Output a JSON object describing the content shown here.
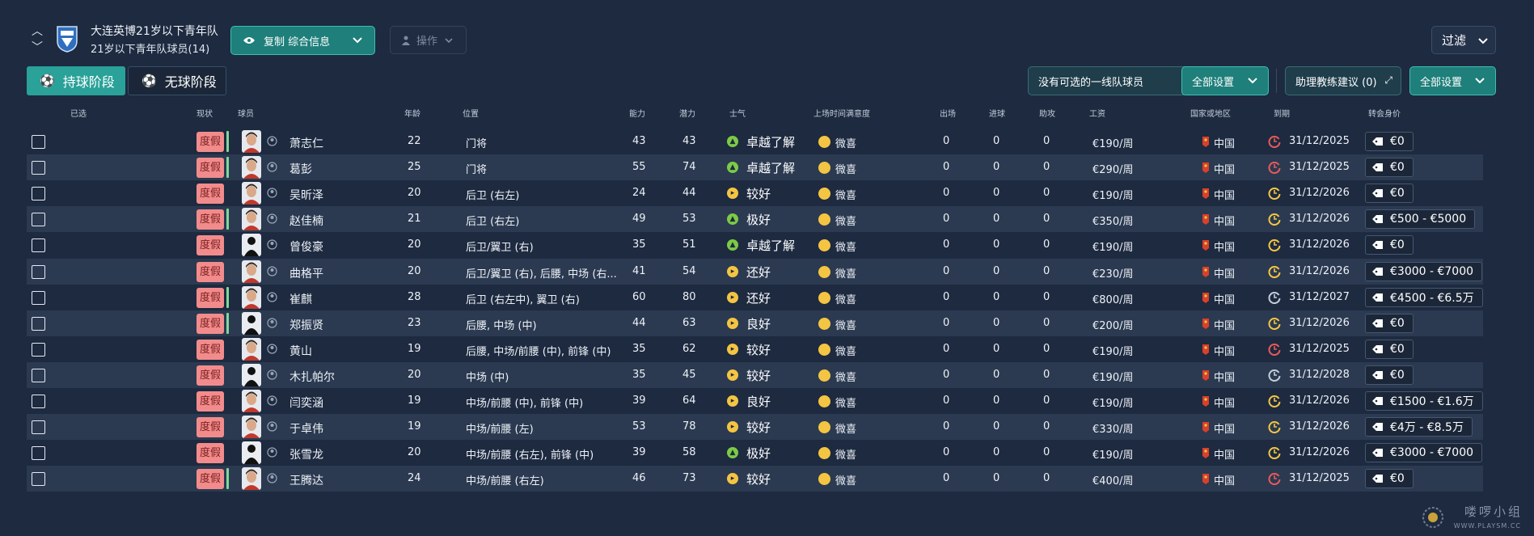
{
  "header": {
    "team_name": "大连英博21岁以下青年队",
    "team_sub": "21岁以下青年队球员(14)",
    "copy_button": "复制 综合信息",
    "action_button": "操作",
    "filter_button": "过滤"
  },
  "tabs": {
    "in_possession": "持球阶段",
    "out_possession": "无球阶段"
  },
  "toolbar": {
    "no_first_team": "没有可选的一线队球员",
    "all_settings_1": "全部设置",
    "assistant_advice": "助理教练建议 (0)",
    "all_settings_2": "全部设置"
  },
  "columns": {
    "selected": "已选",
    "status": "现状",
    "player": "球员",
    "age": "年龄",
    "position": "位置",
    "ability": "能力",
    "potential": "潜力",
    "morale": "士气",
    "playing_time": "上场时间满意度",
    "apps": "出场",
    "goals": "进球",
    "assists": "助攻",
    "wage": "工资",
    "nation": "国家或地区",
    "expires": "到期",
    "value": "转会身价"
  },
  "colors": {
    "morale_green": "#7ccb45",
    "morale_yellow": "#f4c542",
    "status_pink": "#f28c8c",
    "accent_teal": "#2aa199",
    "clock_red": "#e85a5a",
    "clock_yellow": "#f4c542",
    "clock_grey": "#c4cdd9"
  },
  "players": [
    {
      "status": "度假",
      "status_bar": true,
      "face": "photo",
      "name": "萧志仁",
      "age": "22",
      "position": "门将",
      "ability": "43",
      "potential": "43",
      "morale": "卓越了解",
      "morale_color": "green",
      "satisfaction": "微喜",
      "apps": "0",
      "goals": "0",
      "assists": "0",
      "wage": "€190/周",
      "nation": "中国",
      "expires": "31/12/2025",
      "expiry_color": "red",
      "value": "€0"
    },
    {
      "status": "度假",
      "status_bar": true,
      "face": "photo",
      "name": "葛彭",
      "age": "25",
      "position": "门将",
      "ability": "55",
      "potential": "74",
      "morale": "卓越了解",
      "morale_color": "green",
      "satisfaction": "微喜",
      "apps": "0",
      "goals": "0",
      "assists": "0",
      "wage": "€290/周",
      "nation": "中国",
      "expires": "31/12/2025",
      "expiry_color": "red",
      "value": "€0"
    },
    {
      "status": "度假",
      "status_bar": false,
      "face": "photo",
      "name": "吴昕泽",
      "age": "20",
      "position": "后卫 (右左)",
      "ability": "24",
      "potential": "44",
      "morale": "较好",
      "morale_color": "yellow",
      "satisfaction": "微喜",
      "apps": "0",
      "goals": "0",
      "assists": "0",
      "wage": "€190/周",
      "nation": "中国",
      "expires": "31/12/2026",
      "expiry_color": "yellow",
      "value": "€0"
    },
    {
      "status": "度假",
      "status_bar": true,
      "face": "photo",
      "name": "赵佳楠",
      "age": "21",
      "position": "后卫 (右左)",
      "ability": "49",
      "potential": "53",
      "morale": "极好",
      "morale_color": "green",
      "satisfaction": "微喜",
      "apps": "0",
      "goals": "0",
      "assists": "0",
      "wage": "€350/周",
      "nation": "中国",
      "expires": "31/12/2026",
      "expiry_color": "yellow",
      "value": "€500 - €5000"
    },
    {
      "status": "度假",
      "status_bar": false,
      "face": "silhouette",
      "name": "曾俊豪",
      "age": "20",
      "position": "后卫/翼卫 (右)",
      "ability": "35",
      "potential": "51",
      "morale": "卓越了解",
      "morale_color": "green",
      "satisfaction": "微喜",
      "apps": "0",
      "goals": "0",
      "assists": "0",
      "wage": "€190/周",
      "nation": "中国",
      "expires": "31/12/2026",
      "expiry_color": "yellow",
      "value": "€0"
    },
    {
      "status": "度假",
      "status_bar": false,
      "face": "photo",
      "name": "曲格平",
      "age": "20",
      "position": "后卫/翼卫 (右), 后腰, 中场 (右...",
      "ability": "41",
      "potential": "54",
      "morale": "还好",
      "morale_color": "yellow",
      "satisfaction": "微喜",
      "apps": "0",
      "goals": "0",
      "assists": "0",
      "wage": "€230/周",
      "nation": "中国",
      "expires": "31/12/2026",
      "expiry_color": "yellow",
      "value": "€3000 - €7000"
    },
    {
      "status": "度假",
      "status_bar": true,
      "face": "photo",
      "name": "崔麒",
      "age": "28",
      "position": "后卫 (右左中), 翼卫 (右)",
      "ability": "60",
      "potential": "80",
      "morale": "还好",
      "morale_color": "yellow",
      "satisfaction": "微喜",
      "apps": "0",
      "goals": "0",
      "assists": "0",
      "wage": "€800/周",
      "nation": "中国",
      "expires": "31/12/2027",
      "expiry_color": "grey",
      "value": "€4500 - €6.5万"
    },
    {
      "status": "度假",
      "status_bar": true,
      "face": "silhouette",
      "name": "郑振贤",
      "age": "23",
      "position": "后腰, 中场 (中)",
      "ability": "44",
      "potential": "63",
      "morale": "良好",
      "morale_color": "yellow",
      "satisfaction": "微喜",
      "apps": "0",
      "goals": "0",
      "assists": "0",
      "wage": "€200/周",
      "nation": "中国",
      "expires": "31/12/2026",
      "expiry_color": "yellow",
      "value": "€0"
    },
    {
      "status": "度假",
      "status_bar": false,
      "face": "photo",
      "name": "黄山",
      "age": "19",
      "position": "后腰, 中场/前腰 (中), 前锋 (中)",
      "ability": "35",
      "potential": "62",
      "morale": "较好",
      "morale_color": "yellow",
      "satisfaction": "微喜",
      "apps": "0",
      "goals": "0",
      "assists": "0",
      "wage": "€190/周",
      "nation": "中国",
      "expires": "31/12/2025",
      "expiry_color": "red",
      "value": "€0"
    },
    {
      "status": "度假",
      "status_bar": false,
      "face": "silhouette",
      "name": "木扎帕尔",
      "age": "20",
      "position": "中场 (中)",
      "ability": "35",
      "potential": "45",
      "morale": "较好",
      "morale_color": "yellow",
      "satisfaction": "微喜",
      "apps": "0",
      "goals": "0",
      "assists": "0",
      "wage": "€190/周",
      "nation": "中国",
      "expires": "31/12/2028",
      "expiry_color": "grey",
      "value": "€0"
    },
    {
      "status": "度假",
      "status_bar": false,
      "face": "photo",
      "name": "闫奕涵",
      "age": "19",
      "position": "中场/前腰 (中), 前锋 (中)",
      "ability": "39",
      "potential": "64",
      "morale": "良好",
      "morale_color": "yellow",
      "satisfaction": "微喜",
      "apps": "0",
      "goals": "0",
      "assists": "0",
      "wage": "€190/周",
      "nation": "中国",
      "expires": "31/12/2026",
      "expiry_color": "yellow",
      "value": "€1500 - €1.6万"
    },
    {
      "status": "度假",
      "status_bar": false,
      "face": "photo",
      "name": "于卓伟",
      "age": "19",
      "position": "中场/前腰 (左)",
      "ability": "53",
      "potential": "78",
      "morale": "较好",
      "morale_color": "yellow",
      "satisfaction": "微喜",
      "apps": "0",
      "goals": "0",
      "assists": "0",
      "wage": "€330/周",
      "nation": "中国",
      "expires": "31/12/2026",
      "expiry_color": "yellow",
      "value": "€4万 - €8.5万"
    },
    {
      "status": "度假",
      "status_bar": false,
      "face": "silhouette",
      "name": "张雪龙",
      "age": "20",
      "position": "中场/前腰 (右左), 前锋 (中)",
      "ability": "39",
      "potential": "58",
      "morale": "极好",
      "morale_color": "green",
      "satisfaction": "微喜",
      "apps": "0",
      "goals": "0",
      "assists": "0",
      "wage": "€190/周",
      "nation": "中国",
      "expires": "31/12/2026",
      "expiry_color": "yellow",
      "value": "€3000 - €7000"
    },
    {
      "status": "度假",
      "status_bar": true,
      "face": "photo",
      "name": "王腾达",
      "age": "24",
      "position": "中场/前腰 (右左)",
      "ability": "46",
      "potential": "73",
      "morale": "较好",
      "morale_color": "yellow",
      "satisfaction": "微喜",
      "apps": "0",
      "goals": "0",
      "assists": "0",
      "wage": "€400/周",
      "nation": "中国",
      "expires": "31/12/2025",
      "expiry_color": "red",
      "value": "€0"
    }
  ],
  "watermark": {
    "title": "喽啰小组",
    "url": "WWW.PLAYSM.CC"
  }
}
